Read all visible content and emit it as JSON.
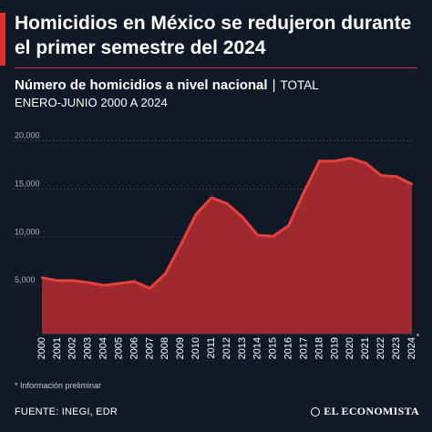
{
  "header": {
    "title": "Homicidios en México se redujeron durante el primer semestre del 2024",
    "subtitle_bold": "Número de homicidios a nivel nacional",
    "subtitle_sep": "|",
    "subtitle_light": "TOTAL",
    "subtitle_line2": "ENERO-JUNIO 2000 A 2024"
  },
  "footer": {
    "note": "* Información preliminar",
    "source": "FUENTE: INEGI, EDR",
    "logo_text": "EL ECONOMISTA"
  },
  "colors": {
    "background": "#101a26",
    "accent": "#e0322f",
    "area_fill": "#9e2a2e",
    "line": "#e8403a"
  },
  "chart_data": {
    "type": "area",
    "x": [
      "2000",
      "2001",
      "2002",
      "2003",
      "2004",
      "2005",
      "2006",
      "2007",
      "2008",
      "2009",
      "2010",
      "2011",
      "2012",
      "2013",
      "2014",
      "2015",
      "2016",
      "2017",
      "2018",
      "2019",
      "2020",
      "2021",
      "2022",
      "2023",
      "2024"
    ],
    "x_suffix_last": "*",
    "values": [
      5800,
      5500,
      5500,
      5300,
      5000,
      5200,
      5400,
      4700,
      6200,
      9200,
      12400,
      14100,
      13500,
      12100,
      10200,
      10100,
      11200,
      14700,
      17900,
      17900,
      18200,
      17700,
      16400,
      16300,
      15500
    ],
    "yticks": [
      "5,000",
      "10,000",
      "15,000",
      "20,000"
    ],
    "ytick_values": [
      5000,
      10000,
      15000,
      20000
    ],
    "ylim": [
      0,
      21000
    ],
    "grid": true
  }
}
